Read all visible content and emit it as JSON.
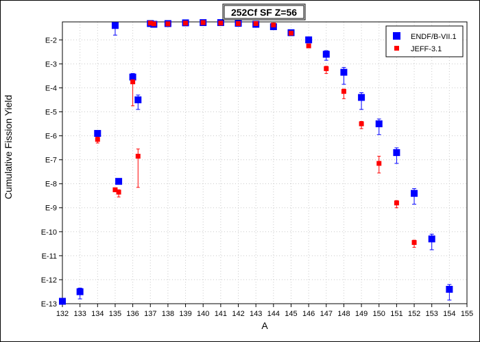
{
  "chart_data": {
    "type": "scatter",
    "title": "252Cf SF Z=56",
    "xlabel": "A",
    "ylabel": "Cumulative Fission Yield",
    "xlim": [
      132,
      155
    ],
    "ylim_log10": [
      -13,
      -1.25
    ],
    "y_scale": "log",
    "x_ticks": [
      "132",
      "133",
      "134",
      "135",
      "136",
      "137",
      "138",
      "139",
      "140",
      "141",
      "142",
      "143",
      "144",
      "145",
      "146",
      "147",
      "148",
      "149",
      "150",
      "151",
      "152",
      "153",
      "154",
      "155"
    ],
    "y_ticks": [
      {
        "label": "E-13",
        "exp": -13
      },
      {
        "label": "E-12",
        "exp": -12
      },
      {
        "label": "E-11",
        "exp": -11
      },
      {
        "label": "E-10",
        "exp": -10
      },
      {
        "label": "E-9",
        "exp": -9
      },
      {
        "label": "E-8",
        "exp": -8
      },
      {
        "label": "E-7",
        "exp": -7
      },
      {
        "label": "E-6",
        "exp": -6
      },
      {
        "label": "E-5",
        "exp": -5
      },
      {
        "label": "E-4",
        "exp": -4
      },
      {
        "label": "E-3",
        "exp": -3
      },
      {
        "label": "E-2",
        "exp": -2
      }
    ],
    "grid": true,
    "legend_position": "top-right",
    "series": [
      {
        "name": "ENDF/B-VII.1",
        "color": "#0000ff",
        "marker": "square-large",
        "points": [
          {
            "x": 132,
            "exp": -12.9,
            "err_up": 0.0,
            "err_down": 0.0
          },
          {
            "x": 133,
            "exp": -12.5,
            "err_up": 0.15,
            "err_down": 0.3
          },
          {
            "x": 134,
            "exp": -5.9,
            "err_up": 0.1,
            "err_down": 0.1
          },
          {
            "x": 135,
            "exp": -1.4,
            "err_up": 0.1,
            "err_down": 0.4
          },
          {
            "x": 135.2,
            "exp": -7.9,
            "err_up": 0.1,
            "err_down": 0.1
          },
          {
            "x": 136,
            "exp": -3.55,
            "err_up": 0.15,
            "err_down": 0.2
          },
          {
            "x": 136.3,
            "exp": -4.5,
            "err_up": 0.2,
            "err_down": 0.4
          },
          {
            "x": 137,
            "exp": -1.32,
            "err_up": 0.0,
            "err_down": 0.0
          },
          {
            "x": 137.2,
            "exp": -1.35,
            "err_up": 0.0,
            "err_down": 0.0
          },
          {
            "x": 138,
            "exp": -1.32,
            "err_up": 0.0,
            "err_down": 0.0
          },
          {
            "x": 139,
            "exp": -1.29,
            "err_up": 0.0,
            "err_down": 0.0
          },
          {
            "x": 140,
            "exp": -1.28,
            "err_up": 0.0,
            "err_down": 0.0
          },
          {
            "x": 141,
            "exp": -1.28,
            "err_up": 0.0,
            "err_down": 0.0
          },
          {
            "x": 142,
            "exp": -1.31,
            "err_up": 0.0,
            "err_down": 0.0
          },
          {
            "x": 143,
            "exp": -1.35,
            "err_up": 0.0,
            "err_down": 0.0
          },
          {
            "x": 144,
            "exp": -1.45,
            "err_up": 0.0,
            "err_down": 0.0
          },
          {
            "x": 145,
            "exp": -1.7,
            "err_up": 0.0,
            "err_down": 0.0
          },
          {
            "x": 146,
            "exp": -2.0,
            "err_up": 0.0,
            "err_down": 0.0
          },
          {
            "x": 147,
            "exp": -2.6,
            "err_up": 0.15,
            "err_down": 0.25
          },
          {
            "x": 148,
            "exp": -3.35,
            "err_up": 0.2,
            "err_down": 0.5
          },
          {
            "x": 149,
            "exp": -4.4,
            "err_up": 0.2,
            "err_down": 0.5
          },
          {
            "x": 150,
            "exp": -5.5,
            "err_up": 0.2,
            "err_down": 0.45
          },
          {
            "x": 151,
            "exp": -6.7,
            "err_up": 0.2,
            "err_down": 0.45
          },
          {
            "x": 152,
            "exp": -8.4,
            "err_up": 0.2,
            "err_down": 0.45
          },
          {
            "x": 153,
            "exp": -10.3,
            "err_up": 0.2,
            "err_down": 0.45
          },
          {
            "x": 154,
            "exp": -12.4,
            "err_up": 0.2,
            "err_down": 0.45
          }
        ]
      },
      {
        "name": "JEFF-3.1",
        "color": "#ff0000",
        "marker": "square-small",
        "points": [
          {
            "x": 134,
            "exp": -6.15,
            "err_up": 0.1,
            "err_down": 0.15
          },
          {
            "x": 135,
            "exp": -8.25,
            "err_up": 0.0,
            "err_down": 0.0
          },
          {
            "x": 135.2,
            "exp": -8.35,
            "err_up": 0.1,
            "err_down": 0.2
          },
          {
            "x": 136,
            "exp": -3.75,
            "err_up": 0.3,
            "err_down": 1.0
          },
          {
            "x": 136.3,
            "exp": -6.85,
            "err_up": 0.3,
            "err_down": 1.3
          },
          {
            "x": 137,
            "exp": -1.3,
            "err_up": 0.0,
            "err_down": 0.0
          },
          {
            "x": 137.2,
            "exp": -1.33,
            "err_up": 0.0,
            "err_down": 0.0
          },
          {
            "x": 138,
            "exp": -1.33,
            "err_up": 0.0,
            "err_down": 0.0
          },
          {
            "x": 139,
            "exp": -1.3,
            "err_up": 0.0,
            "err_down": 0.0
          },
          {
            "x": 140,
            "exp": -1.28,
            "err_up": 0.0,
            "err_down": 0.0
          },
          {
            "x": 141,
            "exp": -1.3,
            "err_up": 0.0,
            "err_down": 0.0
          },
          {
            "x": 142,
            "exp": -1.32,
            "err_up": 0.0,
            "err_down": 0.0
          },
          {
            "x": 143,
            "exp": -1.32,
            "err_up": 0.0,
            "err_down": 0.0
          },
          {
            "x": 144,
            "exp": -1.38,
            "err_up": 0.0,
            "err_down": 0.0
          },
          {
            "x": 145,
            "exp": -1.72,
            "err_up": 0.0,
            "err_down": 0.0
          },
          {
            "x": 146,
            "exp": -2.25,
            "err_up": 0.0,
            "err_down": 0.0
          },
          {
            "x": 147,
            "exp": -3.2,
            "err_up": 0.1,
            "err_down": 0.2
          },
          {
            "x": 148,
            "exp": -4.15,
            "err_up": 0.1,
            "err_down": 0.3
          },
          {
            "x": 149,
            "exp": -5.5,
            "err_up": 0.1,
            "err_down": 0.2
          },
          {
            "x": 150,
            "exp": -7.15,
            "err_up": 0.3,
            "err_down": 0.4
          },
          {
            "x": 151,
            "exp": -8.8,
            "err_up": 0.1,
            "err_down": 0.2
          },
          {
            "x": 152,
            "exp": -10.45,
            "err_up": 0.1,
            "err_down": 0.2
          }
        ]
      }
    ]
  }
}
